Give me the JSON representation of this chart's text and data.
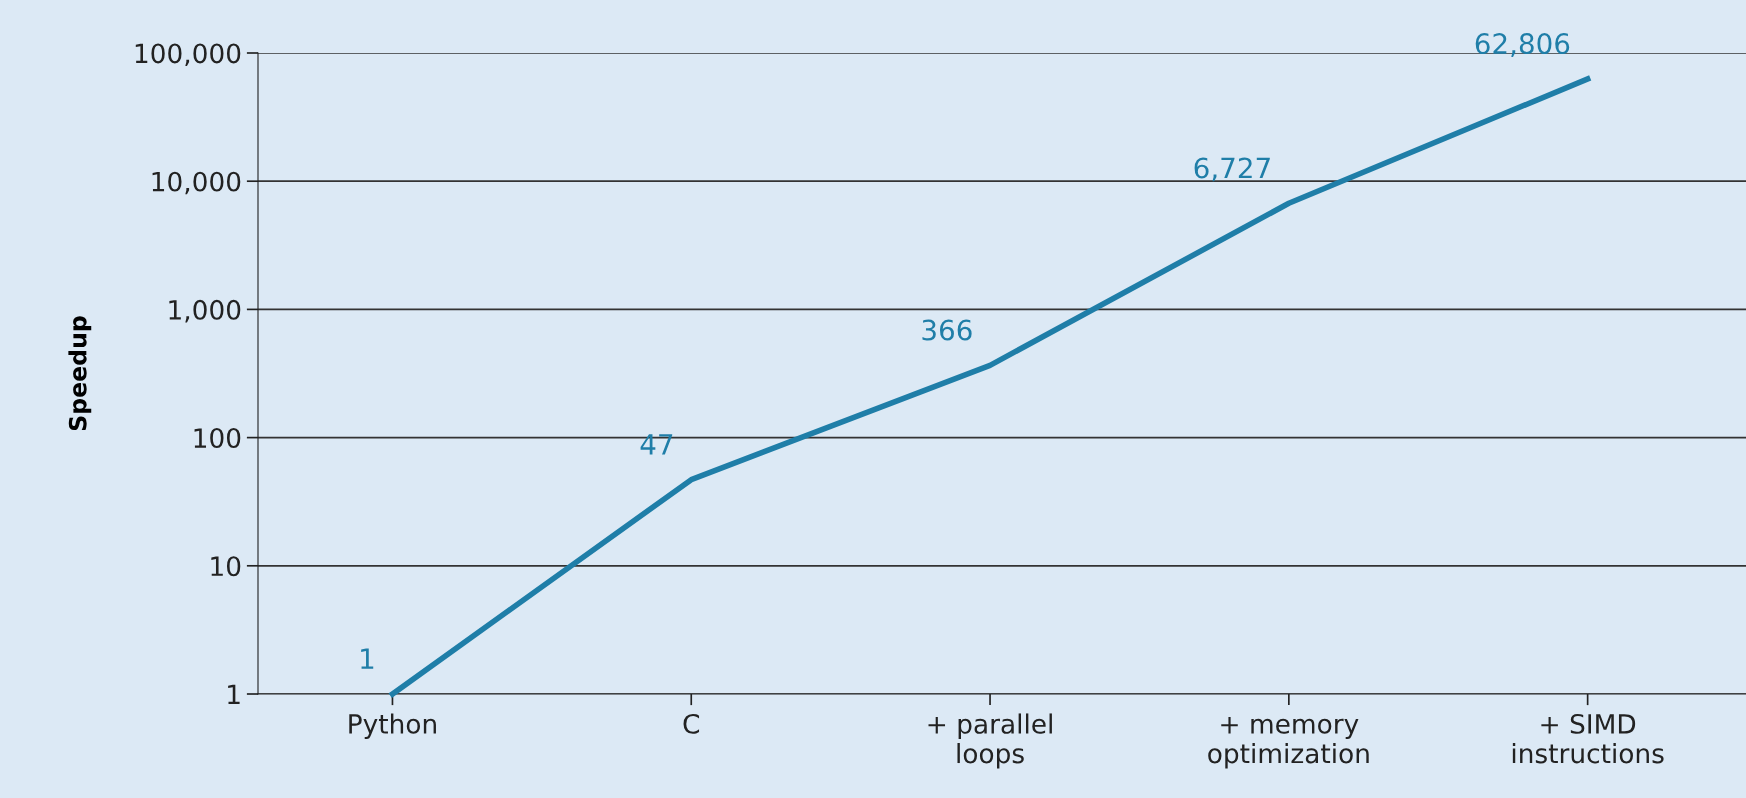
{
  "chart_data": {
    "type": "line",
    "ylabel": "Speedup",
    "categories": [
      "Python",
      "C",
      "+ parallel\nloops",
      "+ memory\noptimization",
      "+ SIMD\ninstructions"
    ],
    "series": [
      {
        "color": "#1f7ea8",
        "values": [
          1,
          47,
          366,
          6727,
          62806
        ],
        "value_labels": [
          "1",
          "47",
          "366",
          "6,727",
          "62,806"
        ]
      }
    ],
    "log": true,
    "ylim": [
      1,
      100000
    ],
    "yticks": [
      1,
      10,
      {
        "value": 100,
        "label": "100"
      },
      {
        "value": 1000,
        "label": "1,000"
      },
      {
        "value": 10000,
        "label": "10,000"
      },
      {
        "value": 100000,
        "label": "100,000"
      }
    ],
    "grid": "y",
    "marker": "none",
    "line_style": "solid"
  }
}
